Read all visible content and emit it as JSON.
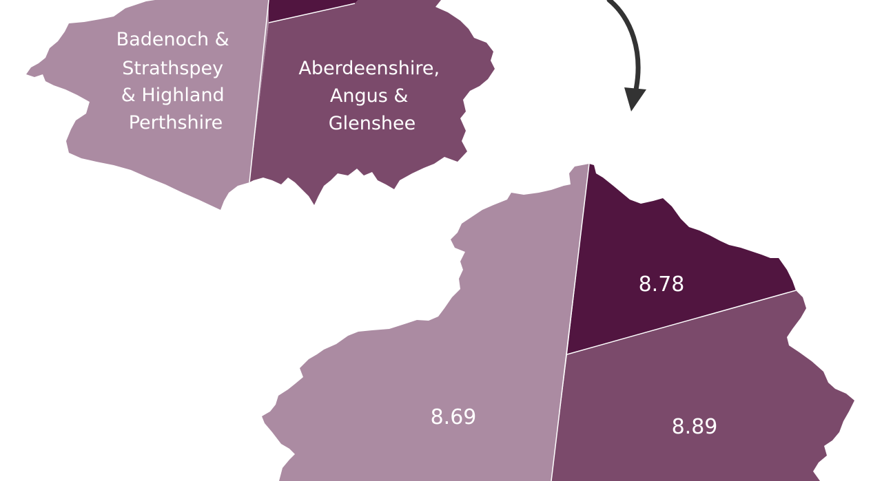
{
  "colors": {
    "region_light": "#ab8ba2",
    "region_medium": "#7b4a6b",
    "region_dark": "#511540",
    "arrow": "#333333",
    "text": "#ffffff"
  },
  "key_map": {
    "regions": [
      {
        "id": "west",
        "lines": [
          "Badenoch &",
          "Strathspey",
          "& Highland",
          "Perthshire"
        ]
      },
      {
        "id": "southeast",
        "lines": [
          "Aberdeenshire,",
          "Angus &",
          "Glenshee"
        ]
      },
      {
        "id": "north",
        "lines": []
      }
    ]
  },
  "value_map": {
    "regions": [
      {
        "id": "west",
        "value": "8.69"
      },
      {
        "id": "north",
        "value": "8.78"
      },
      {
        "id": "southeast",
        "value": "8.89"
      }
    ]
  }
}
